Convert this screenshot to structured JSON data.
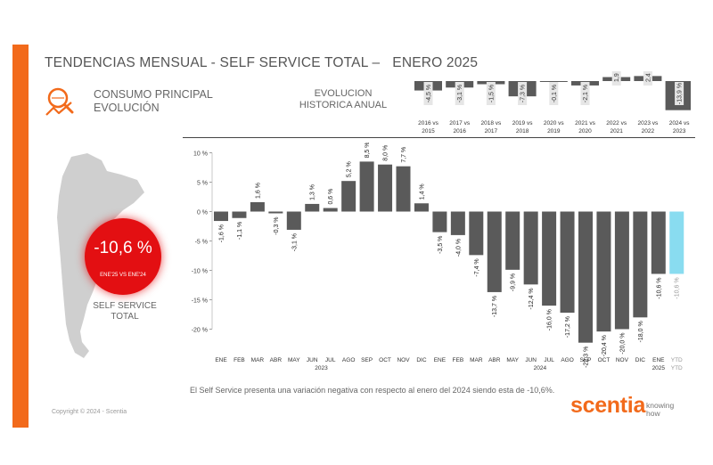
{
  "header": {
    "title": "TENDENCIAS MENSUAL - SELF SERVICE TOTAL –",
    "period": "ENERO 2025"
  },
  "consumo": {
    "line1": "CONSUMO PRINCIPAL",
    "line2": "EVOLUCIÓN",
    "icon": "magnifier-trend-icon"
  },
  "historic_label": {
    "line1": "EVOLUCION",
    "line2": "HISTORICA ANUAL"
  },
  "highlight": {
    "value": "-10,6 %",
    "caption": "ENE'25 VS ENE'24",
    "label_line1": "SELF SERVICE",
    "label_line2": "TOTAL",
    "color": "#e30f12"
  },
  "footnote": "El Self Service presenta una variación negativa con respecto al enero del 2024 siendo esta de -10,6%.",
  "copyright": "Copyright © 2024 - Scentia",
  "brand": {
    "name": "scentia",
    "tagline_line1": "knowing",
    "tagline_line2": "how",
    "color": "#f26a1b"
  },
  "chart_data": [
    {
      "type": "bar",
      "title": "EVOLUCION HISTORICA ANUAL",
      "categories": [
        [
          "2016 vs",
          "2015"
        ],
        [
          "2017 vs",
          "2016"
        ],
        [
          "2018 vs",
          "2017"
        ],
        [
          "2019 vs",
          "2018"
        ],
        [
          "2020 vs",
          "2019"
        ],
        [
          "2021 vs",
          "2020"
        ],
        [
          "2022 vs",
          "2021"
        ],
        [
          "2023 vs",
          "2022"
        ],
        [
          "2024 vs",
          "2023"
        ]
      ],
      "values": [
        -4.5,
        -3.1,
        -1.5,
        -7.3,
        -0.1,
        -2.1,
        1.9,
        2.4,
        -13.9
      ],
      "labels": [
        "-4,5 %",
        "-3,1 %",
        "-1,5 %",
        "-7,3 %",
        "-0,1 %",
        "-2,1 %",
        "1,9 %",
        "2,4 %",
        "-13,9 %"
      ],
      "bar_color": "#5a5a5a"
    },
    {
      "type": "bar",
      "title": "",
      "ylim": [
        -20,
        10
      ],
      "yticks": [
        10,
        5,
        0,
        -5,
        -10,
        -15,
        -20
      ],
      "ytick_labels": [
        "10 %",
        "5 %",
        "0 %",
        "-5 %",
        "-10 %",
        "-15 %",
        "-20 %"
      ],
      "categories": [
        "ENE",
        "FEB",
        "MAR",
        "ABR",
        "MAY",
        "JUN",
        "JUL",
        "AGO",
        "SEP",
        "OCT",
        "NOV",
        "DIC",
        "ENE",
        "FEB",
        "MAR",
        "ABR",
        "MAY",
        "JUN",
        "JUL",
        "AGO",
        "SEP",
        "OCT",
        "NOV",
        "DIC",
        "ENE",
        "YTD"
      ],
      "sublabels": [
        "",
        "",
        "",
        "",
        "",
        "",
        "",
        "",
        "",
        "",
        "",
        "",
        "",
        "",
        "",
        "",
        "",
        "",
        "",
        "",
        "",
        "",
        "",
        "",
        "",
        "YTD"
      ],
      "year_labels": [
        {
          "label": "2023",
          "at": 5
        },
        {
          "label": "2024",
          "at": 17
        },
        {
          "label": "2025",
          "at": 24
        }
      ],
      "values": [
        -1.6,
        -1.1,
        1.6,
        -0.3,
        -3.1,
        1.3,
        0.6,
        5.2,
        8.5,
        8.0,
        7.7,
        1.4,
        -3.5,
        -4.0,
        -7.4,
        -13.7,
        -9.9,
        -12.4,
        -16.0,
        -17.2,
        -22.3,
        -20.4,
        -20.0,
        -18.0,
        -10.6,
        -10.6
      ],
      "labels": [
        "-1,6 %",
        "-1,1 %",
        "1,6 %",
        "-0,3 %",
        "-3,1 %",
        "1,3 %",
        "0,6 %",
        "5,2 %",
        "8,5 %",
        "8,0 %",
        "7,7 %",
        "1,4 %",
        "-3,5 %",
        "-4,0 %",
        "-7,4 %",
        "-13,7 %",
        "-9,9 %",
        "-12,4 %",
        "-16,0 %",
        "-17,2 %",
        "-22,3 %",
        "-20,4 %",
        "-20,0 %",
        "-18,0 %",
        "-10,6 %",
        "-10,6 %"
      ],
      "bar_color": "#5a5a5a",
      "highlight_color": "#89dcf0",
      "highlight_index": 25
    }
  ]
}
